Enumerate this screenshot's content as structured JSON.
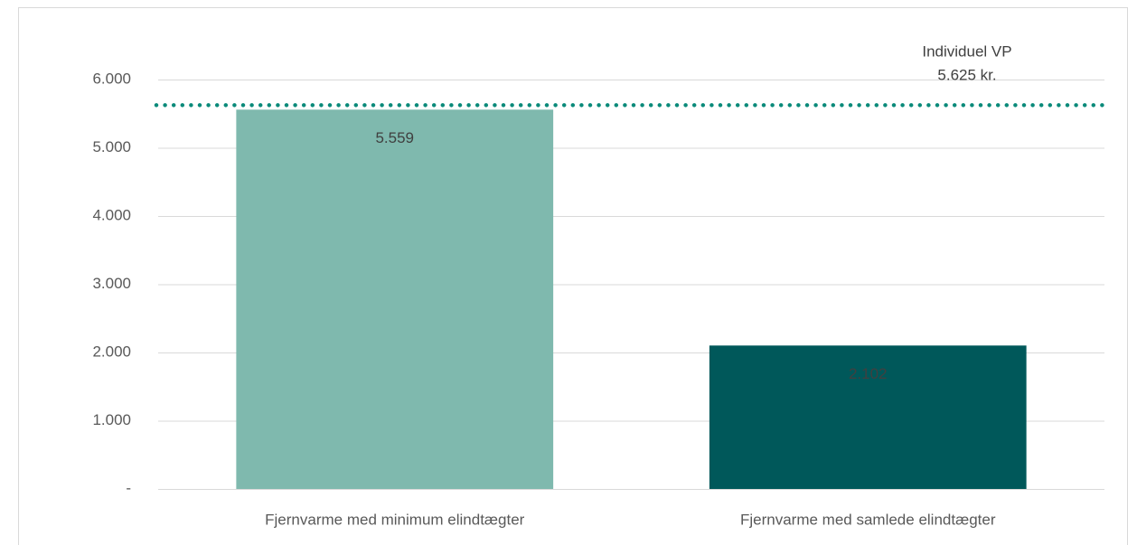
{
  "chart_data": {
    "type": "bar",
    "categories": [
      "Fjernvarme med minimum elindtægter",
      "Fjernvarme med samlede elindtægter"
    ],
    "values": [
      5559,
      2102
    ],
    "value_labels": [
      "5.559",
      "2.102"
    ],
    "colors": [
      "#7fb9ae",
      "#00585a"
    ],
    "ylim": [
      0,
      6000
    ],
    "yticks": [
      {
        "value": 0,
        "label": "-"
      },
      {
        "value": 1000,
        "label": "1.000"
      },
      {
        "value": 2000,
        "label": "2.000"
      },
      {
        "value": 3000,
        "label": "3.000"
      },
      {
        "value": 4000,
        "label": "4.000"
      },
      {
        "value": 5000,
        "label": "5.000"
      },
      {
        "value": 6000,
        "label": "6.000"
      }
    ],
    "grid": true,
    "reference_line": {
      "value": 5625,
      "label": "Individuel VP",
      "value_label": "5.625 kr.",
      "color": "#0a8a7a"
    }
  }
}
